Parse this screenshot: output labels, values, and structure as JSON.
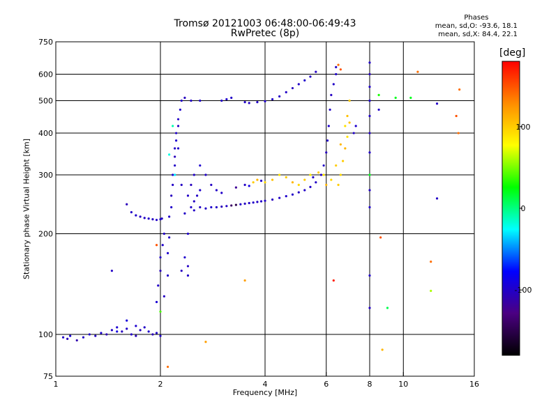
{
  "header": {
    "title": "Tromsø 20121003 06:48:00-06:49:43",
    "subtitle": "RwPretec (8p)",
    "stats_title": "Phases",
    "stats_o": "mean, sd,O: -93.6, 18.1",
    "stats_x": "mean, sd,X:  84.4, 22.1"
  },
  "colorbar": {
    "title": "[deg]",
    "ticks": [
      {
        "value": 100,
        "label": "100"
      },
      {
        "value": 0,
        "label": "0"
      },
      {
        "value": -100,
        "label": "-100"
      }
    ],
    "range": [
      -180,
      180
    ],
    "colors": [
      "#000000",
      "#4b0082",
      "#0000ff",
      "#00ffff",
      "#00ff00",
      "#ffff00",
      "#ff8c00",
      "#ff0000"
    ]
  },
  "chart_data": {
    "type": "scatter",
    "title": "Tromsø 20121003 06:48:00-06:49:43",
    "subtitle": "RwPretec (8p)",
    "xlabel": "Frequency [MHz]",
    "ylabel": "Stationary phase Virtual Height [km]",
    "x_scale": "log",
    "y_scale": "log",
    "xlim": [
      1,
      16
    ],
    "ylim": [
      75,
      750
    ],
    "xticks": [
      {
        "value": 1,
        "label": "1"
      },
      {
        "value": 2,
        "label": "2"
      },
      {
        "value": 4,
        "label": "4"
      },
      {
        "value": 6,
        "label": "6"
      },
      {
        "value": 8,
        "label": "8"
      },
      {
        "value": 10,
        "label": "10"
      },
      {
        "value": 16,
        "label": "16"
      }
    ],
    "yticks": [
      {
        "value": 75,
        "label": "75"
      },
      {
        "value": 100,
        "label": "100"
      },
      {
        "value": 200,
        "label": "200"
      },
      {
        "value": 300,
        "label": "300"
      },
      {
        "value": 400,
        "label": "400"
      },
      {
        "value": 500,
        "label": "500"
      },
      {
        "value": 600,
        "label": "600"
      },
      {
        "value": 750,
        "label": "750"
      }
    ],
    "xgrid": [
      2,
      4,
      6,
      8,
      10
    ],
    "ygrid": [
      100,
      200,
      300,
      400,
      500,
      600
    ],
    "color_quantity": "phase (deg)",
    "color_range": [
      -180,
      180
    ],
    "points": [
      [
        1.05,
        98,
        -100
      ],
      [
        1.08,
        97,
        -105
      ],
      [
        1.1,
        99,
        -95
      ],
      [
        1.15,
        96,
        -110
      ],
      [
        1.2,
        98,
        -100
      ],
      [
        1.25,
        100,
        -98
      ],
      [
        1.3,
        99,
        -102
      ],
      [
        1.35,
        101,
        -96
      ],
      [
        1.4,
        100,
        -108
      ],
      [
        1.45,
        103,
        -100
      ],
      [
        1.5,
        105,
        -95
      ],
      [
        1.55,
        102,
        -104
      ],
      [
        1.6,
        104,
        -99
      ],
      [
        1.65,
        100,
        -101
      ],
      [
        1.7,
        106,
        -97
      ],
      [
        1.75,
        103,
        -103
      ],
      [
        1.8,
        105,
        -100
      ],
      [
        1.85,
        102,
        -98
      ],
      [
        1.9,
        100,
        -106
      ],
      [
        1.95,
        101,
        -99
      ],
      [
        2.0,
        99,
        -100
      ],
      [
        1.5,
        102,
        -90
      ],
      [
        1.6,
        110,
        -92
      ],
      [
        1.7,
        99,
        -105
      ],
      [
        1.45,
        155,
        -100
      ],
      [
        1.6,
        245,
        -105
      ],
      [
        1.65,
        232,
        -100
      ],
      [
        1.7,
        227,
        -98
      ],
      [
        1.75,
        225,
        -102
      ],
      [
        1.8,
        223,
        -100
      ],
      [
        1.85,
        222,
        -99
      ],
      [
        1.9,
        221,
        -101
      ],
      [
        1.95,
        220,
        -100
      ],
      [
        2.0,
        221,
        -98
      ],
      [
        2.02,
        222,
        -100
      ],
      [
        1.95,
        125,
        -95
      ],
      [
        1.97,
        140,
        -100
      ],
      [
        2.0,
        155,
        -105
      ],
      [
        2.0,
        170,
        -100
      ],
      [
        2.03,
        185,
        -98
      ],
      [
        2.05,
        200,
        -100
      ],
      [
        2.05,
        130,
        -102
      ],
      [
        2.1,
        150,
        -100
      ],
      [
        2.1,
        175,
        -97
      ],
      [
        2.12,
        195,
        -101
      ],
      [
        2.12,
        225,
        -100
      ],
      [
        2.15,
        240,
        -99
      ],
      [
        2.15,
        260,
        -103
      ],
      [
        2.17,
        280,
        -100
      ],
      [
        2.17,
        300,
        -98
      ],
      [
        2.2,
        320,
        -100
      ],
      [
        2.2,
        340,
        -105
      ],
      [
        2.2,
        360,
        -100
      ],
      [
        2.22,
        380,
        -97
      ],
      [
        2.22,
        400,
        -100
      ],
      [
        2.25,
        420,
        -102
      ],
      [
        2.25,
        440,
        -100
      ],
      [
        2.28,
        470,
        -98
      ],
      [
        2.3,
        500,
        -100
      ],
      [
        2.35,
        510,
        -103
      ],
      [
        2.45,
        500,
        -100
      ],
      [
        2.6,
        500,
        -99
      ],
      [
        2.12,
        345,
        -20
      ],
      [
        2.17,
        420,
        -10
      ],
      [
        2.2,
        300,
        -30
      ],
      [
        2.25,
        360,
        -100
      ],
      [
        2.3,
        280,
        -102
      ],
      [
        2.35,
        230,
        -100
      ],
      [
        2.35,
        170,
        -98
      ],
      [
        2.4,
        160,
        -101
      ],
      [
        2.4,
        150,
        -100
      ],
      [
        2.3,
        155,
        -103
      ],
      [
        2.4,
        200,
        -99
      ],
      [
        2.45,
        240,
        -100
      ],
      [
        2.5,
        250,
        -102
      ],
      [
        2.55,
        260,
        -100
      ],
      [
        2.6,
        270,
        -98
      ],
      [
        2.4,
        260,
        -100
      ],
      [
        2.45,
        280,
        -104
      ],
      [
        2.5,
        300,
        -100
      ],
      [
        2.6,
        320,
        -97
      ],
      [
        2.7,
        300,
        -100
      ],
      [
        2.8,
        280,
        -102
      ],
      [
        2.9,
        270,
        -100
      ],
      [
        3.0,
        265,
        -99
      ],
      [
        2.5,
        235,
        -100
      ],
      [
        2.6,
        240,
        -101
      ],
      [
        2.7,
        238,
        -100
      ],
      [
        2.8,
        240,
        -98
      ],
      [
        2.9,
        240,
        -100
      ],
      [
        3.0,
        241,
        -105
      ],
      [
        3.1,
        242,
        -100
      ],
      [
        3.2,
        243,
        -140
      ],
      [
        3.3,
        244,
        -150
      ],
      [
        3.4,
        245,
        -100
      ],
      [
        3.5,
        246,
        -102
      ],
      [
        3.6,
        247,
        -100
      ],
      [
        3.7,
        248,
        -99
      ],
      [
        3.8,
        249,
        -100
      ],
      [
        3.9,
        250,
        -101
      ],
      [
        4.0,
        251,
        -100
      ],
      [
        4.2,
        253,
        -103
      ],
      [
        4.4,
        256,
        -100
      ],
      [
        4.6,
        259,
        -98
      ],
      [
        4.8,
        262,
        -100
      ],
      [
        5.0,
        266,
        -102
      ],
      [
        5.2,
        270,
        -100
      ],
      [
        5.4,
        276,
        -99
      ],
      [
        5.6,
        285,
        -100
      ],
      [
        5.8,
        300,
        -101
      ],
      [
        5.9,
        320,
        -100
      ],
      [
        6.0,
        350,
        -103
      ],
      [
        6.05,
        380,
        -100
      ],
      [
        6.1,
        420,
        -98
      ],
      [
        6.15,
        470,
        -100
      ],
      [
        6.2,
        520,
        -102
      ],
      [
        6.3,
        560,
        -100
      ],
      [
        6.4,
        600,
        -99
      ],
      [
        3.3,
        275,
        -120
      ],
      [
        3.5,
        280,
        -100
      ],
      [
        3.6,
        278,
        -90
      ],
      [
        3.7,
        285,
        100
      ],
      [
        3.8,
        290,
        110
      ],
      [
        3.9,
        288,
        -100
      ],
      [
        4.0,
        285,
        95
      ],
      [
        4.2,
        290,
        105
      ],
      [
        4.4,
        300,
        90
      ],
      [
        4.6,
        295,
        100
      ],
      [
        4.8,
        285,
        110
      ],
      [
        5.0,
        280,
        95
      ],
      [
        5.2,
        290,
        100
      ],
      [
        5.4,
        300,
        85
      ],
      [
        5.5,
        295,
        -100
      ],
      [
        5.7,
        305,
        100
      ],
      [
        5.9,
        300,
        90
      ],
      [
        6.0,
        280,
        110
      ],
      [
        6.2,
        290,
        95
      ],
      [
        6.4,
        320,
        100
      ],
      [
        6.6,
        370,
        110
      ],
      [
        6.8,
        420,
        90
      ],
      [
        6.9,
        450,
        105
      ],
      [
        7.0,
        500,
        100
      ],
      [
        6.5,
        280,
        100
      ],
      [
        6.6,
        300,
        95
      ],
      [
        6.7,
        330,
        100
      ],
      [
        6.8,
        360,
        110
      ],
      [
        6.9,
        390,
        90
      ],
      [
        7.0,
        430,
        105
      ],
      [
        6.5,
        640,
        140
      ],
      [
        6.6,
        620,
        150
      ],
      [
        6.4,
        630,
        -100
      ],
      [
        7.2,
        400,
        -100
      ],
      [
        7.3,
        420,
        -98
      ],
      [
        3.5,
        495,
        -100
      ],
      [
        3.6,
        492,
        -102
      ],
      [
        3.8,
        495,
        -100
      ],
      [
        4.0,
        498,
        -99
      ],
      [
        4.2,
        505,
        -100
      ],
      [
        4.4,
        515,
        -101
      ],
      [
        4.6,
        530,
        -100
      ],
      [
        4.8,
        545,
        -103
      ],
      [
        5.0,
        560,
        -100
      ],
      [
        5.2,
        575,
        -98
      ],
      [
        5.4,
        590,
        -100
      ],
      [
        5.6,
        610,
        -102
      ],
      [
        3.0,
        500,
        -100
      ],
      [
        3.1,
        505,
        -99
      ],
      [
        3.2,
        510,
        -100
      ],
      [
        8.0,
        650,
        -100
      ],
      [
        8.0,
        600,
        -105
      ],
      [
        8.0,
        550,
        -100
      ],
      [
        8.0,
        500,
        -98
      ],
      [
        8.0,
        450,
        -100
      ],
      [
        8.0,
        400,
        -102
      ],
      [
        8.0,
        350,
        -100
      ],
      [
        8.0,
        300,
        20
      ],
      [
        8.0,
        270,
        -100
      ],
      [
        8.0,
        240,
        -99
      ],
      [
        8.0,
        150,
        -100
      ],
      [
        8.0,
        120,
        -101
      ],
      [
        8.5,
        520,
        30
      ],
      [
        8.5,
        470,
        -100
      ],
      [
        8.6,
        195,
        150
      ],
      [
        8.7,
        90,
        110
      ],
      [
        9.5,
        510,
        20
      ],
      [
        10.5,
        510,
        20
      ],
      [
        11.0,
        610,
        140
      ],
      [
        12.5,
        490,
        -100
      ],
      [
        12.5,
        255,
        -100
      ],
      [
        12.0,
        165,
        140
      ],
      [
        12.0,
        135,
        60
      ],
      [
        14.5,
        540,
        140
      ],
      [
        14.2,
        450,
        150
      ],
      [
        14.4,
        400,
        140
      ],
      [
        2.7,
        95,
        120
      ],
      [
        3.5,
        145,
        120
      ],
      [
        2.1,
        80,
        140
      ],
      [
        2.0,
        117,
        40
      ],
      [
        1.95,
        185,
        150
      ],
      [
        6.3,
        145,
        170
      ],
      [
        9.0,
        120,
        10
      ]
    ]
  }
}
